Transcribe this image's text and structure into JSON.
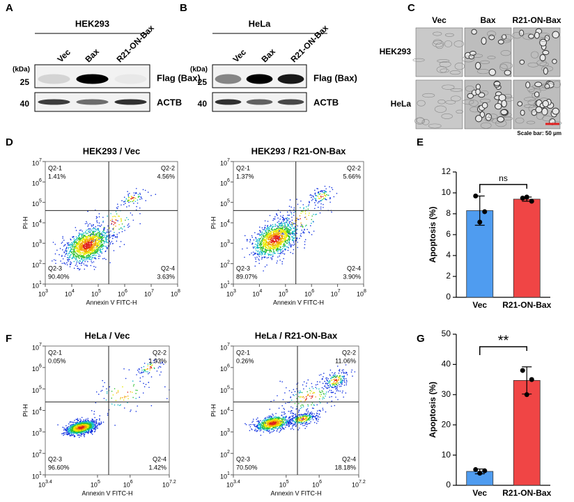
{
  "panel_labels": [
    "A",
    "B",
    "C",
    "D",
    "E",
    "F",
    "G"
  ],
  "blots": [
    {
      "cell_line": "HEK293",
      "lanes": [
        "Vec",
        "Bax",
        "R21-ON-Bax"
      ],
      "kda_label": "(kDa)",
      "markers": [
        25,
        40
      ],
      "bands": [
        "Flag (Bax)",
        "ACTB"
      ]
    },
    {
      "cell_line": "HeLa",
      "lanes": [
        "Vec",
        "Bax",
        "R21-ON-Bax"
      ],
      "kda_label": "(kDa)",
      "markers": [
        25,
        40
      ],
      "bands": [
        "Flag (Bax)",
        "ACTB"
      ]
    }
  ],
  "micrographs": {
    "columns": [
      "Vec",
      "Bax",
      "R21-ON-Bax"
    ],
    "rows": [
      "HEK293",
      "HeLa"
    ],
    "scale_bar": "Scale bar: 50 μm"
  },
  "chart_data": [
    {
      "type": "flow",
      "title": "HEK293 / Vec",
      "xlabel": "Annexin V FITC-H",
      "ylabel": "PI-H",
      "log_scale": true,
      "xlim": [
        1000,
        100000000
      ],
      "ylim": [
        10,
        10000000
      ],
      "xticks": [
        {
          "value": 1000,
          "label": "10",
          "sup": "3"
        },
        {
          "value": 10000,
          "label": "10",
          "sup": "4"
        },
        {
          "value": 100000,
          "label": "10",
          "sup": "5"
        },
        {
          "value": 1000000,
          "label": "10",
          "sup": "6"
        },
        {
          "value": 10000000,
          "label": "10",
          "sup": "7"
        },
        {
          "value": 100000000,
          "label": "10",
          "sup": "8"
        }
      ],
      "yticks": [
        {
          "value": 10,
          "label": "10",
          "sup": "1"
        },
        {
          "value": 100,
          "label": "10",
          "sup": "2"
        },
        {
          "value": 1000,
          "label": "10",
          "sup": "3"
        },
        {
          "value": 10000,
          "label": "10",
          "sup": "4"
        },
        {
          "value": 100000,
          "label": "10",
          "sup": "5"
        },
        {
          "value": 1000000,
          "label": "10",
          "sup": "6"
        },
        {
          "value": 10000000,
          "label": "10",
          "sup": "7"
        }
      ],
      "gate": [
        250000,
        40000
      ],
      "quadrants": [
        "Q2-1",
        "Q2-2",
        "Q2-3",
        "Q2-4"
      ],
      "values": [
        1.41,
        4.56,
        90.4,
        3.63
      ],
      "value_labels": [
        "1.41%",
        "4.56%",
        "90.40%",
        "3.63%"
      ]
    },
    {
      "type": "flow",
      "title": "HEK293 / R21-ON-Bax",
      "xlabel": "Annexin V FITC-H",
      "ylabel": "PI-H",
      "log_scale": true,
      "xlim": [
        1000,
        100000000
      ],
      "ylim": [
        10,
        10000000
      ],
      "xticks": [
        {
          "value": 1000,
          "label": "10",
          "sup": "3"
        },
        {
          "value": 10000,
          "label": "10",
          "sup": "4"
        },
        {
          "value": 100000,
          "label": "10",
          "sup": "5"
        },
        {
          "value": 1000000,
          "label": "10",
          "sup": "6"
        },
        {
          "value": 10000000,
          "label": "10",
          "sup": "7"
        },
        {
          "value": 100000000,
          "label": "10",
          "sup": "8"
        }
      ],
      "yticks": [
        {
          "value": 10,
          "label": "10",
          "sup": "1"
        },
        {
          "value": 100,
          "label": "10",
          "sup": "2"
        },
        {
          "value": 1000,
          "label": "10",
          "sup": "3"
        },
        {
          "value": 10000,
          "label": "10",
          "sup": "4"
        },
        {
          "value": 100000,
          "label": "10",
          "sup": "5"
        },
        {
          "value": 1000000,
          "label": "10",
          "sup": "6"
        },
        {
          "value": 10000000,
          "label": "10",
          "sup": "7"
        }
      ],
      "gate": [
        250000,
        40000
      ],
      "quadrants": [
        "Q2-1",
        "Q2-2",
        "Q2-3",
        "Q2-4"
      ],
      "values": [
        1.37,
        5.66,
        89.07,
        3.9
      ],
      "value_labels": [
        "1.37%",
        "5.66%",
        "89.07%",
        "3.90%"
      ]
    },
    {
      "type": "bar",
      "ylabel": "Apoptosis (%)",
      "categories": [
        "Vec",
        "R21-ON-Bax"
      ],
      "colors": [
        "#4f9cf0",
        "#f04545"
      ],
      "values": [
        8.3,
        9.4
      ],
      "errors": [
        1.4,
        0.2
      ],
      "points": [
        [
          9.7,
          8.2,
          7.2
        ],
        [
          9.5,
          9.2,
          9.6
        ]
      ],
      "ylim": [
        0,
        12
      ],
      "yticks": [
        0,
        2,
        4,
        6,
        8,
        10,
        12
      ],
      "annotation": "ns"
    },
    {
      "type": "flow",
      "title": "HeLa / Vec",
      "xlabel": "Annexin V FITC-H",
      "ylabel": "PI-H",
      "log_scale": true,
      "xlim": [
        2512,
        15848932
      ],
      "ylim": [
        10,
        10000000
      ],
      "xticks": [
        {
          "value": 2512,
          "label": "10",
          "sup": "3.4"
        },
        {
          "value": 100000,
          "label": "10",
          "sup": "5"
        },
        {
          "value": 1000000,
          "label": "10",
          "sup": "6"
        },
        {
          "value": 15848932,
          "label": "10",
          "sup": "7.2"
        }
      ],
      "yticks": [
        {
          "value": 10,
          "label": "10",
          "sup": "1"
        },
        {
          "value": 100,
          "label": "10",
          "sup": "2"
        },
        {
          "value": 1000,
          "label": "10",
          "sup": "3"
        },
        {
          "value": 10000,
          "label": "10",
          "sup": "4"
        },
        {
          "value": 100000,
          "label": "10",
          "sup": "5"
        },
        {
          "value": 1000000,
          "label": "10",
          "sup": "6"
        },
        {
          "value": 10000000,
          "label": "10",
          "sup": "7"
        }
      ],
      "gate": [
        220000,
        25000
      ],
      "quadrants": [
        "Q2-1",
        "Q2-2",
        "Q2-3",
        "Q2-4"
      ],
      "values": [
        0.05,
        1.93,
        96.6,
        1.42
      ],
      "value_labels": [
        "0.05%",
        "1.93%",
        "96.60%",
        "1.42%"
      ]
    },
    {
      "type": "flow",
      "title": "HeLa / R21-ON-Bax",
      "xlabel": "Annexin V FITC-H",
      "ylabel": "PI-H",
      "log_scale": true,
      "xlim": [
        2512,
        15848932
      ],
      "ylim": [
        10,
        10000000
      ],
      "xticks": [
        {
          "value": 2512,
          "label": "10",
          "sup": "3.4"
        },
        {
          "value": 100000,
          "label": "10",
          "sup": "5"
        },
        {
          "value": 1000000,
          "label": "10",
          "sup": "6"
        },
        {
          "value": 15848932,
          "label": "10",
          "sup": "7.2"
        }
      ],
      "yticks": [
        {
          "value": 10,
          "label": "10",
          "sup": "1"
        },
        {
          "value": 100,
          "label": "10",
          "sup": "2"
        },
        {
          "value": 1000,
          "label": "10",
          "sup": "3"
        },
        {
          "value": 10000,
          "label": "10",
          "sup": "4"
        },
        {
          "value": 100000,
          "label": "10",
          "sup": "5"
        },
        {
          "value": 1000000,
          "label": "10",
          "sup": "6"
        },
        {
          "value": 10000000,
          "label": "10",
          "sup": "7"
        }
      ],
      "gate": [
        220000,
        25000
      ],
      "quadrants": [
        "Q2-1",
        "Q2-2",
        "Q2-3",
        "Q2-4"
      ],
      "values": [
        0.26,
        11.06,
        70.5,
        18.18
      ],
      "value_labels": [
        "0.26%",
        "11.06%",
        "70.50%",
        "18.18%"
      ]
    },
    {
      "type": "bar",
      "ylabel": "Apoptosis (%)",
      "categories": [
        "Vec",
        "R21-ON-Bax"
      ],
      "colors": [
        "#4f9cf0",
        "#f04545"
      ],
      "values": [
        4.6,
        34.7
      ],
      "errors": [
        0.8,
        4.5
      ],
      "points": [
        [
          5.2,
          4.8,
          4.0
        ],
        [
          38.0,
          35.0,
          30.0
        ]
      ],
      "ylim": [
        0,
        50
      ],
      "yticks": [
        0,
        10,
        20,
        30,
        40,
        50
      ],
      "annotation": "**"
    }
  ]
}
